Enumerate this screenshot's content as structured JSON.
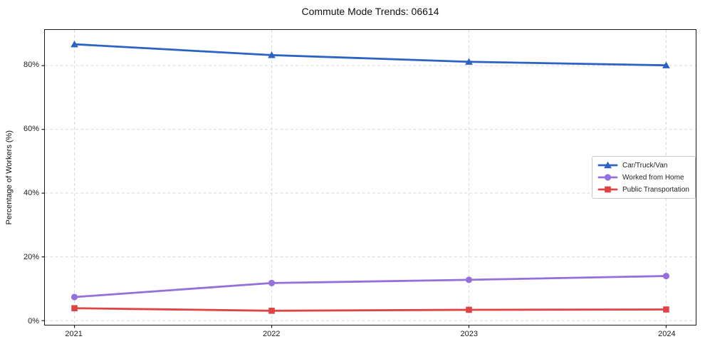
{
  "chart_data": {
    "type": "line",
    "title": "Commute Mode Trends: 06614",
    "xlabel": "",
    "ylabel": "Percentage of Workers (%)",
    "x": [
      2021,
      2022,
      2023,
      2024
    ],
    "xtick_labels": [
      "2021",
      "2022",
      "2023",
      "2024"
    ],
    "xlim": [
      2020.85,
      2024.15
    ],
    "ylim": [
      -1.3,
      91.2
    ],
    "yticks": [
      0,
      20,
      40,
      60,
      80
    ],
    "ytick_labels": [
      "0%",
      "20%",
      "40%",
      "60%",
      "80%"
    ],
    "grid": true,
    "grid_style": "dashed",
    "grid_color": "#d9d9d9",
    "axis_color": "#1a1a1a",
    "legend_position": "center-right",
    "series": [
      {
        "name": "Car/Truck/Van",
        "color": "#2c62c4",
        "marker": "triangle",
        "values": [
          86.7,
          83.3,
          81.2,
          80.1
        ]
      },
      {
        "name": "Worked from Home",
        "color": "#9370db",
        "marker": "circle",
        "values": [
          7.4,
          11.8,
          12.8,
          14.0
        ]
      },
      {
        "name": "Public Transportation",
        "color": "#e04343",
        "marker": "square",
        "values": [
          3.9,
          3.1,
          3.4,
          3.5
        ]
      }
    ]
  }
}
